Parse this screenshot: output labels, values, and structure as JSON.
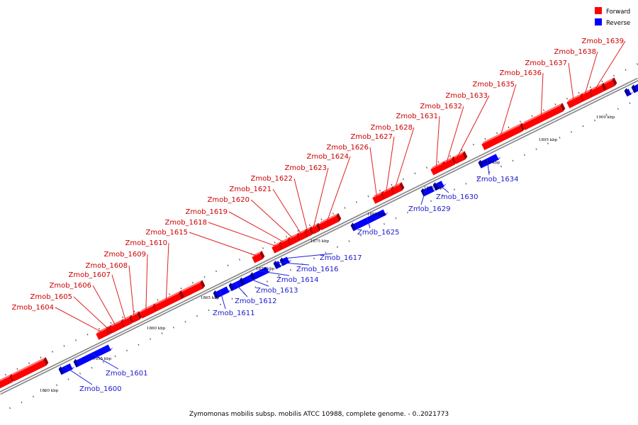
{
  "colors": {
    "forward": "#ff0000",
    "reverse": "#0000ff",
    "forward_text": "#cc0000",
    "reverse_text": "#1a1acc"
  },
  "legend": {
    "forward": "Forward",
    "reverse": "Reverse"
  },
  "caption": "Zymomonas mobilis subsp. mobilis ATCC 10988, complete genome. - 0..2021773",
  "kbp_marks": [
    "1850 kbp",
    "1855 kbp",
    "1860 kbp",
    "1865 kbp",
    "1870 kbp",
    "1875 kbp",
    "1880 kbp",
    "1885 kbp",
    "1890 kbp",
    "1895 kbp",
    "1900 kbp"
  ],
  "genes": [
    {
      "name": "Zmob_1600",
      "strand": "reverse"
    },
    {
      "name": "Zmob_1601",
      "strand": "reverse"
    },
    {
      "name": "Zmob_1604",
      "strand": "forward"
    },
    {
      "name": "Zmob_1605",
      "strand": "forward"
    },
    {
      "name": "Zmob_1606",
      "strand": "forward"
    },
    {
      "name": "Zmob_1607",
      "strand": "forward"
    },
    {
      "name": "Zmob_1608",
      "strand": "forward"
    },
    {
      "name": "Zmob_1609",
      "strand": "forward"
    },
    {
      "name": "Zmob_1610",
      "strand": "forward"
    },
    {
      "name": "Zmob_1611",
      "strand": "reverse"
    },
    {
      "name": "Zmob_1612",
      "strand": "reverse"
    },
    {
      "name": "Zmob_1613",
      "strand": "reverse"
    },
    {
      "name": "Zmob_1614",
      "strand": "reverse"
    },
    {
      "name": "Zmob_1615",
      "strand": "forward"
    },
    {
      "name": "Zmob_1616",
      "strand": "reverse"
    },
    {
      "name": "Zmob_1617",
      "strand": "reverse"
    },
    {
      "name": "Zmob_1618",
      "strand": "forward"
    },
    {
      "name": "Zmob_1619",
      "strand": "forward"
    },
    {
      "name": "Zmob_1620",
      "strand": "forward"
    },
    {
      "name": "Zmob_1621",
      "strand": "forward"
    },
    {
      "name": "Zmob_1622",
      "strand": "forward"
    },
    {
      "name": "Zmob_1623",
      "strand": "forward"
    },
    {
      "name": "Zmob_1624",
      "strand": "forward"
    },
    {
      "name": "Zmob_1625",
      "strand": "reverse"
    },
    {
      "name": "Zmob_1626",
      "strand": "forward"
    },
    {
      "name": "Zmob_1627",
      "strand": "forward"
    },
    {
      "name": "Zmob_1628",
      "strand": "forward"
    },
    {
      "name": "Zmob_1629",
      "strand": "reverse"
    },
    {
      "name": "Zmob_1630",
      "strand": "reverse"
    },
    {
      "name": "Zmob_1631",
      "strand": "forward"
    },
    {
      "name": "Zmob_1632",
      "strand": "forward"
    },
    {
      "name": "Zmob_1633",
      "strand": "forward"
    },
    {
      "name": "Zmob_1634",
      "strand": "reverse"
    },
    {
      "name": "Zmob_1635",
      "strand": "forward"
    },
    {
      "name": "Zmob_1636",
      "strand": "forward"
    },
    {
      "name": "Zmob_1637",
      "strand": "forward"
    },
    {
      "name": "Zmob_1638",
      "strand": "forward"
    },
    {
      "name": "Zmob_1639",
      "strand": "forward"
    }
  ]
}
